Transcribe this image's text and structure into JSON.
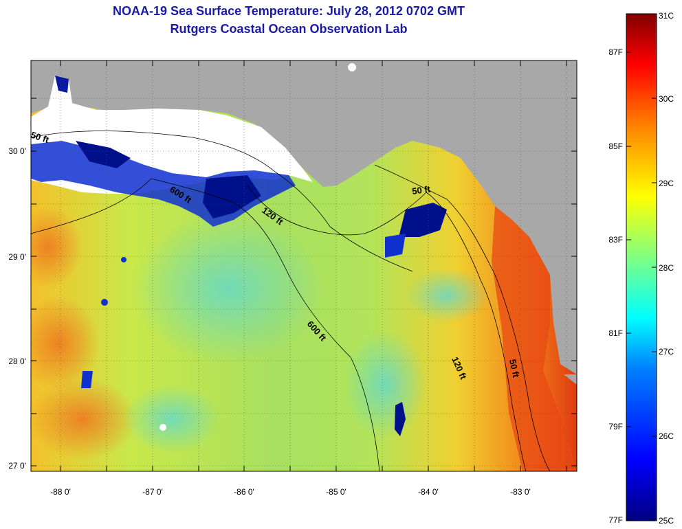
{
  "title": {
    "line1": "NOAA-19 Sea Surface Temperature:  July 28, 2012 0702 GMT",
    "line2": "Rutgers Coastal Ocean Observation Lab"
  },
  "map": {
    "lon_ticks": [
      "-88 0'",
      "-87 0'",
      "-86 0'",
      "-85 0'",
      "-84 0'",
      "-83 0'"
    ],
    "lat_ticks": [
      "30 0'",
      "29 0'",
      "28 0'",
      "27 0'"
    ],
    "isobath_labels": [
      "50 ft",
      "600 ft",
      "120 ft",
      "50 ft",
      "600 ft",
      "120 ft",
      "50 ft"
    ],
    "colors": {
      "land": "#a8a8a8",
      "cloud": "#ffffff",
      "frame": "#000000",
      "title": "#1a1aa6"
    }
  },
  "colorbar": {
    "celsius_labels": [
      "31C",
      "30C",
      "29C",
      "28C",
      "27C",
      "26C",
      "25C"
    ],
    "fahrenheit_labels": [
      "87F",
      "85F",
      "83F",
      "81F",
      "79F",
      "77F"
    ],
    "gradient_stops": [
      "#000080",
      "#0000ff",
      "#0080ff",
      "#00ffff",
      "#80ff80",
      "#ffff00",
      "#ff8000",
      "#ff0000",
      "#800000"
    ]
  }
}
